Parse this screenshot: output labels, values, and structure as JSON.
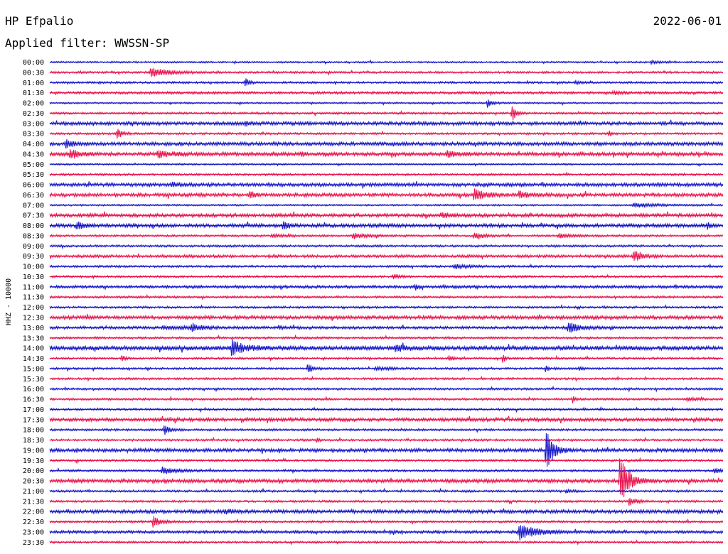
{
  "header": {
    "station": "HP Efpalio",
    "date": "2022-06-01",
    "filter": "Applied filter: WWSSN-SP"
  },
  "chart_data": {
    "type": "line",
    "title": "HP Efpalio",
    "ylabel": "HHZ - 10000",
    "tick_labels": [
      "00:00",
      "00:30",
      "01:00",
      "01:30",
      "02:00",
      "02:30",
      "03:00",
      "03:30",
      "04:00",
      "04:30",
      "05:00",
      "05:30",
      "06:00",
      "06:30",
      "07:00",
      "07:30",
      "08:00",
      "08:30",
      "09:00",
      "09:30",
      "10:00",
      "10:30",
      "11:00",
      "11:30",
      "12:00",
      "12:30",
      "13:00",
      "13:30",
      "14:00",
      "14:30",
      "15:00",
      "15:30",
      "16:00",
      "16:30",
      "17:00",
      "17:30",
      "18:00",
      "18:30",
      "19:00",
      "19:30",
      "20:00",
      "20:30",
      "21:00",
      "21:30",
      "22:00",
      "22:30",
      "23:00",
      "23:30"
    ],
    "trace_colors": [
      "#1414c8",
      "#e8104a"
    ],
    "x_units": "minutes within 30-minute row",
    "xlim": [
      0,
      30
    ],
    "background_noise": [
      1.2,
      1.5,
      1.5,
      1.8,
      1.2,
      1.5,
      2.5,
      1.5,
      2.5,
      2.5,
      1.2,
      1.5,
      2.5,
      2.5,
      1.2,
      2.5,
      2.5,
      1.5,
      1.5,
      2,
      1.5,
      1.5,
      2,
      1.5,
      1.5,
      2.5,
      2,
      1.5,
      3,
      1.5,
      1.5,
      1.5,
      1.5,
      1.5,
      1.5,
      2.5,
      1.5,
      1.5,
      2.5,
      1.5,
      1.5,
      2.5,
      1.5,
      1.5,
      2.5,
      1.5,
      2,
      1.5
    ],
    "events": [
      {
        "row": 0,
        "t": 26.8,
        "amp": 2,
        "dur": 0.8
      },
      {
        "row": 1,
        "t": 4.5,
        "amp": 7,
        "dur": 1.2
      },
      {
        "row": 2,
        "t": 8.7,
        "amp": 8,
        "dur": 0.25
      },
      {
        "row": 2,
        "t": 23.4,
        "amp": 2.5,
        "dur": 0.3
      },
      {
        "row": 3,
        "t": 25.1,
        "amp": 2,
        "dur": 0.8
      },
      {
        "row": 4,
        "t": 19.5,
        "amp": 6,
        "dur": 0.3
      },
      {
        "row": 5,
        "t": 20.6,
        "amp": 12,
        "dur": 0.25
      },
      {
        "row": 6,
        "t": 8.7,
        "amp": 3,
        "dur": 0.4
      },
      {
        "row": 7,
        "t": 3.0,
        "amp": 8,
        "dur": 0.3
      },
      {
        "row": 7,
        "t": 24.9,
        "amp": 4,
        "dur": 0.2
      },
      {
        "row": 8,
        "t": 0.7,
        "amp": 6,
        "dur": 0.5
      },
      {
        "row": 9,
        "t": 0.9,
        "amp": 6,
        "dur": 0.7
      },
      {
        "row": 9,
        "t": 4.8,
        "amp": 5,
        "dur": 0.9
      },
      {
        "row": 9,
        "t": 17.7,
        "amp": 5,
        "dur": 0.5
      },
      {
        "row": 9,
        "t": 11.2,
        "amp": 3,
        "dur": 0.2
      },
      {
        "row": 12,
        "t": 5.4,
        "amp": 3,
        "dur": 0.6
      },
      {
        "row": 13,
        "t": 8.9,
        "amp": 6,
        "dur": 0.3
      },
      {
        "row": 13,
        "t": 18.9,
        "amp": 8,
        "dur": 0.8
      },
      {
        "row": 13,
        "t": 20.9,
        "amp": 4,
        "dur": 0.7
      },
      {
        "row": 14,
        "t": 26.0,
        "amp": 3,
        "dur": 1.5
      },
      {
        "row": 15,
        "t": 17.5,
        "amp": 3,
        "dur": 0.6
      },
      {
        "row": 16,
        "t": 1.2,
        "amp": 6,
        "dur": 0.4
      },
      {
        "row": 16,
        "t": 10.4,
        "amp": 8,
        "dur": 0.3
      },
      {
        "row": 16,
        "t": 29.3,
        "amp": 5,
        "dur": 0.2
      },
      {
        "row": 17,
        "t": 13.5,
        "amp": 4,
        "dur": 0.8
      },
      {
        "row": 17,
        "t": 18.9,
        "amp": 4,
        "dur": 0.7
      },
      {
        "row": 17,
        "t": 22.7,
        "amp": 3,
        "dur": 0.8
      },
      {
        "row": 17,
        "t": 9.9,
        "amp": 2,
        "dur": 0.8
      },
      {
        "row": 19,
        "t": 26.0,
        "amp": 8,
        "dur": 0.6
      },
      {
        "row": 20,
        "t": 18.0,
        "amp": 3,
        "dur": 1.0
      },
      {
        "row": 21,
        "t": 15.3,
        "amp": 4,
        "dur": 0.4
      },
      {
        "row": 22,
        "t": 16.3,
        "amp": 5,
        "dur": 0.15
      },
      {
        "row": 26,
        "t": 6.3,
        "amp": 6,
        "dur": 0.6
      },
      {
        "row": 26,
        "t": 10.2,
        "amp": 3,
        "dur": 0.2
      },
      {
        "row": 26,
        "t": 23.1,
        "amp": 9,
        "dur": 0.7
      },
      {
        "row": 26,
        "t": 5.0,
        "amp": 2,
        "dur": 1.5
      },
      {
        "row": 28,
        "t": 8.1,
        "amp": 11,
        "dur": 0.8
      },
      {
        "row": 28,
        "t": 15.4,
        "amp": 4,
        "dur": 0.8
      },
      {
        "row": 29,
        "t": 3.2,
        "amp": 5,
        "dur": 0.2
      },
      {
        "row": 29,
        "t": 17.8,
        "amp": 4,
        "dur": 0.3
      },
      {
        "row": 29,
        "t": 20.2,
        "amp": 7,
        "dur": 0.15
      },
      {
        "row": 30,
        "t": 11.5,
        "amp": 8,
        "dur": 0.3
      },
      {
        "row": 30,
        "t": 22.1,
        "amp": 5,
        "dur": 0.2
      },
      {
        "row": 30,
        "t": 23.6,
        "amp": 4,
        "dur": 0.2
      },
      {
        "row": 30,
        "t": 14.5,
        "amp": 2,
        "dur": 1.0
      },
      {
        "row": 33,
        "t": 23.3,
        "amp": 5,
        "dur": 0.15
      },
      {
        "row": 33,
        "t": 28.4,
        "amp": 2.5,
        "dur": 0.6
      },
      {
        "row": 36,
        "t": 5.1,
        "amp": 8,
        "dur": 0.3
      },
      {
        "row": 37,
        "t": 11.9,
        "amp": 3,
        "dur": 0.2
      },
      {
        "row": 38,
        "t": 22.1,
        "amp": 30,
        "dur": 0.5
      },
      {
        "row": 40,
        "t": 5.0,
        "amp": 5,
        "dur": 1.0
      },
      {
        "row": 40,
        "t": 29.6,
        "amp": 3,
        "dur": 0.8
      },
      {
        "row": 41,
        "t": 25.4,
        "amp": 36,
        "dur": 0.6
      },
      {
        "row": 41,
        "t": 5.1,
        "amp": 3,
        "dur": 0.15
      },
      {
        "row": 42,
        "t": 23.0,
        "amp": 3,
        "dur": 0.3
      },
      {
        "row": 43,
        "t": 25.8,
        "amp": 6,
        "dur": 0.5
      },
      {
        "row": 44,
        "t": 7.8,
        "amp": 3,
        "dur": 0.6
      },
      {
        "row": 45,
        "t": 4.6,
        "amp": 8,
        "dur": 0.5
      },
      {
        "row": 46,
        "t": 20.9,
        "amp": 11,
        "dur": 1.2
      }
    ]
  }
}
